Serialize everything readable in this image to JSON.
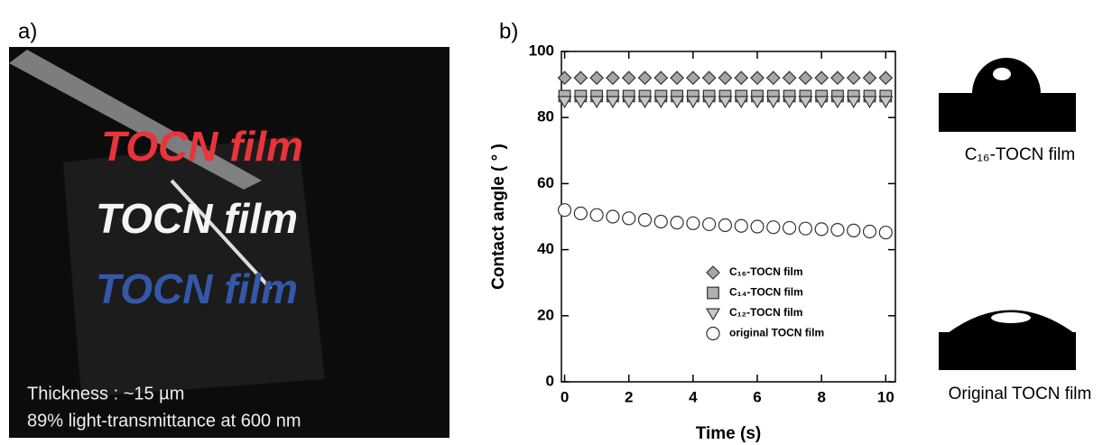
{
  "panel_a": {
    "label": "a)",
    "film_texts": [
      "TOCN film",
      "TOCN film",
      "TOCN film"
    ],
    "notes": [
      "Thickness : ~15 µm",
      "89% light-transmittance at 600 nm"
    ]
  },
  "panel_b_label": "b)",
  "droplets": [
    "C₁₆-TOCN film",
    "Original TOCN film"
  ],
  "chart_data": {
    "type": "scatter",
    "x_label": "Time (s)",
    "y_label": "Contact angle ( ° )",
    "x": [
      0,
      0.5,
      1,
      1.5,
      2,
      2.5,
      3,
      3.5,
      4,
      4.5,
      5,
      5.5,
      6,
      6.5,
      7,
      7.5,
      8,
      8.5,
      9,
      9.5,
      10
    ],
    "series": [
      {
        "name": "C₁₆-TOCN film",
        "color": "#a6a6a6",
        "marker": "diamond",
        "values": [
          92,
          92,
          92,
          92,
          92,
          92,
          92,
          92,
          92,
          92,
          92,
          92,
          92,
          92,
          92,
          92,
          92,
          92,
          92,
          92,
          92
        ]
      },
      {
        "name": "C₁₄-TOCN film",
        "color": "#b0b0b0",
        "marker": "square",
        "values": [
          86.5,
          86.5,
          86.5,
          86.5,
          86.5,
          86.5,
          86.5,
          86.5,
          86.5,
          86.5,
          86.5,
          86.5,
          86.5,
          86.5,
          86.5,
          86.5,
          86.5,
          86.5,
          86.5,
          86.5,
          86.5
        ]
      },
      {
        "name": "C₁₂-TOCN film",
        "color": "#c8c8c8",
        "marker": "triangle-down",
        "values": [
          85,
          85,
          85,
          85,
          85,
          85,
          85,
          85,
          85,
          85,
          85,
          85,
          85,
          85,
          85,
          85,
          85,
          85,
          85,
          85,
          85
        ]
      },
      {
        "name": "original TOCN film",
        "color": "#ffffff",
        "marker": "circle",
        "values": [
          52,
          51,
          50.5,
          50,
          49.5,
          49,
          48.5,
          48.2,
          48,
          47.7,
          47.4,
          47.2,
          47,
          46.8,
          46.6,
          46.4,
          46.2,
          46,
          45.8,
          45.5,
          45.2
        ]
      }
    ],
    "xlim": [
      -0.1,
      10.3
    ],
    "ylim": [
      0,
      100
    ],
    "xticks": [
      0,
      2,
      4,
      6,
      8,
      10
    ],
    "yticks": [
      0,
      20,
      40,
      60,
      80,
      100
    ],
    "legend": "lower-right"
  }
}
